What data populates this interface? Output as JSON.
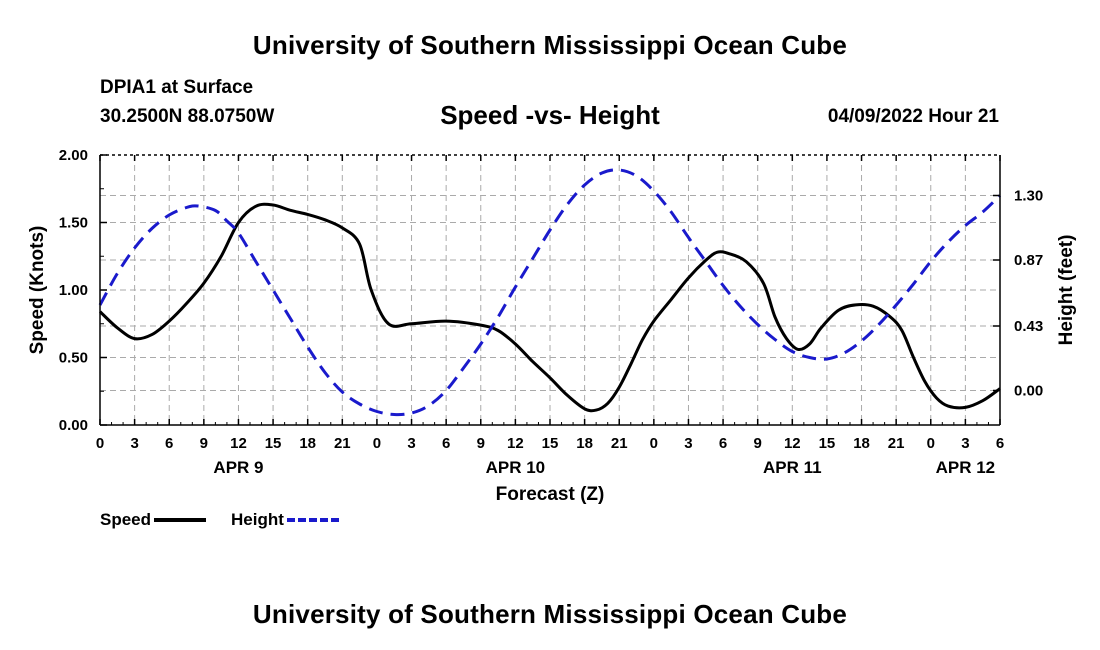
{
  "header": {
    "title": "University of Southern Mississippi Ocean Cube",
    "station": "DPIA1 at Surface",
    "coords": "30.2500N  88.0750W",
    "subtitle": "Speed -vs- Height",
    "datestamp": "04/09/2022 Hour 21",
    "footer_title": "University of Southern Mississippi Ocean Cube"
  },
  "legend": {
    "speed_label": "Speed",
    "height_label": "Height"
  },
  "colors": {
    "speed": "#000000",
    "height": "#1a1acc",
    "grid": "#aaaaaa"
  },
  "chart_data": {
    "type": "line",
    "title": "Speed -vs- Height",
    "xlabel": "Forecast (Z)",
    "ylabel": "Speed (Knots)",
    "y2label": "Height (feet)",
    "x_unit": "hours since APR 9 00Z",
    "xlim": [
      0,
      78
    ],
    "ylim": [
      0,
      2
    ],
    "y2lim": [
      -0.23,
      1.57
    ],
    "x_ticks": [
      0,
      3,
      6,
      9,
      12,
      15,
      18,
      21,
      24,
      27,
      30,
      33,
      36,
      39,
      42,
      45,
      48,
      51,
      54,
      57,
      60,
      63,
      66,
      69,
      72,
      75,
      78
    ],
    "x_tick_labels": [
      "0",
      "3",
      "6",
      "9",
      "12",
      "15",
      "18",
      "21",
      "0",
      "3",
      "6",
      "9",
      "12",
      "15",
      "18",
      "21",
      "0",
      "3",
      "6",
      "9",
      "12",
      "15",
      "18",
      "21",
      "0",
      "3",
      "6"
    ],
    "date_labels": [
      {
        "x": 12,
        "label": "APR 9"
      },
      {
        "x": 36,
        "label": "APR 10"
      },
      {
        "x": 60,
        "label": "APR 11"
      },
      {
        "x": 75,
        "label": "APR 12"
      }
    ],
    "y_ticks": [
      0,
      0.5,
      1.0,
      1.5,
      2.0
    ],
    "y_tick_labels": [
      "0.00",
      "0.50",
      "1.00",
      "1.50",
      "2.00"
    ],
    "y2_ticks": [
      0,
      0.43,
      0.87,
      1.3
    ],
    "y2_tick_labels": [
      "0.00",
      "0.43",
      "0.87",
      "1.30"
    ],
    "grid": true,
    "series": [
      {
        "name": "Speed",
        "axis": "left",
        "style": "solid",
        "points": [
          [
            0,
            0.84
          ],
          [
            1.5,
            0.72
          ],
          [
            3,
            0.64
          ],
          [
            4.5,
            0.67
          ],
          [
            6,
            0.77
          ],
          [
            7.5,
            0.9
          ],
          [
            9,
            1.05
          ],
          [
            10.5,
            1.25
          ],
          [
            12,
            1.5
          ],
          [
            13.5,
            1.62
          ],
          [
            15,
            1.63
          ],
          [
            16.5,
            1.59
          ],
          [
            18,
            1.56
          ],
          [
            19.5,
            1.52
          ],
          [
            21,
            1.46
          ],
          [
            22.5,
            1.34
          ],
          [
            23.5,
            1.0
          ],
          [
            25,
            0.75
          ],
          [
            27,
            0.75
          ],
          [
            30,
            0.77
          ],
          [
            33,
            0.74
          ],
          [
            34.5,
            0.7
          ],
          [
            36,
            0.6
          ],
          [
            37.5,
            0.47
          ],
          [
            39,
            0.35
          ],
          [
            40.5,
            0.22
          ],
          [
            42,
            0.12
          ],
          [
            43,
            0.11
          ],
          [
            44,
            0.16
          ],
          [
            45,
            0.28
          ],
          [
            46,
            0.45
          ],
          [
            47,
            0.63
          ],
          [
            48,
            0.77
          ],
          [
            49.5,
            0.93
          ],
          [
            51,
            1.09
          ],
          [
            52.5,
            1.22
          ],
          [
            53.5,
            1.28
          ],
          [
            54.5,
            1.27
          ],
          [
            56,
            1.21
          ],
          [
            57.5,
            1.05
          ],
          [
            58.5,
            0.8
          ],
          [
            59.5,
            0.64
          ],
          [
            60.5,
            0.56
          ],
          [
            61.5,
            0.6
          ],
          [
            62.5,
            0.72
          ],
          [
            64,
            0.85
          ],
          [
            65.5,
            0.89
          ],
          [
            67,
            0.88
          ],
          [
            68.5,
            0.8
          ],
          [
            69.5,
            0.7
          ],
          [
            70.5,
            0.5
          ],
          [
            71.5,
            0.32
          ],
          [
            72.5,
            0.2
          ],
          [
            73.5,
            0.14
          ],
          [
            75,
            0.13
          ],
          [
            76.5,
            0.18
          ],
          [
            78,
            0.27
          ]
        ]
      },
      {
        "name": "Height",
        "axis": "right",
        "style": "dashed",
        "points": [
          [
            0,
            0.57
          ],
          [
            1.5,
            0.78
          ],
          [
            3,
            0.95
          ],
          [
            4.5,
            1.08
          ],
          [
            6,
            1.17
          ],
          [
            7.5,
            1.22
          ],
          [
            8.5,
            1.23
          ],
          [
            10,
            1.2
          ],
          [
            11,
            1.13
          ],
          [
            12,
            1.05
          ],
          [
            13.5,
            0.86
          ],
          [
            15,
            0.67
          ],
          [
            16.5,
            0.48
          ],
          [
            18,
            0.29
          ],
          [
            19.5,
            0.12
          ],
          [
            21,
            -0.01
          ],
          [
            22.5,
            -0.09
          ],
          [
            24,
            -0.14
          ],
          [
            25.5,
            -0.16
          ],
          [
            27,
            -0.15
          ],
          [
            28.5,
            -0.1
          ],
          [
            30,
            0.0
          ],
          [
            31.5,
            0.15
          ],
          [
            33,
            0.31
          ],
          [
            34.5,
            0.49
          ],
          [
            36,
            0.69
          ],
          [
            37.5,
            0.88
          ],
          [
            39,
            1.07
          ],
          [
            40.5,
            1.24
          ],
          [
            42,
            1.37
          ],
          [
            43.5,
            1.45
          ],
          [
            45,
            1.47
          ],
          [
            46.5,
            1.43
          ],
          [
            48,
            1.33
          ],
          [
            49.5,
            1.19
          ],
          [
            51,
            1.02
          ],
          [
            52.5,
            0.86
          ],
          [
            54,
            0.7
          ],
          [
            55.5,
            0.56
          ],
          [
            57,
            0.44
          ],
          [
            58.5,
            0.34
          ],
          [
            60,
            0.26
          ],
          [
            61.5,
            0.22
          ],
          [
            63,
            0.21
          ],
          [
            64.5,
            0.25
          ],
          [
            66,
            0.33
          ],
          [
            67.5,
            0.44
          ],
          [
            69,
            0.57
          ],
          [
            70.5,
            0.71
          ],
          [
            72,
            0.86
          ],
          [
            73.5,
            0.99
          ],
          [
            75,
            1.1
          ],
          [
            76.5,
            1.19
          ],
          [
            78,
            1.3
          ]
        ]
      }
    ]
  }
}
